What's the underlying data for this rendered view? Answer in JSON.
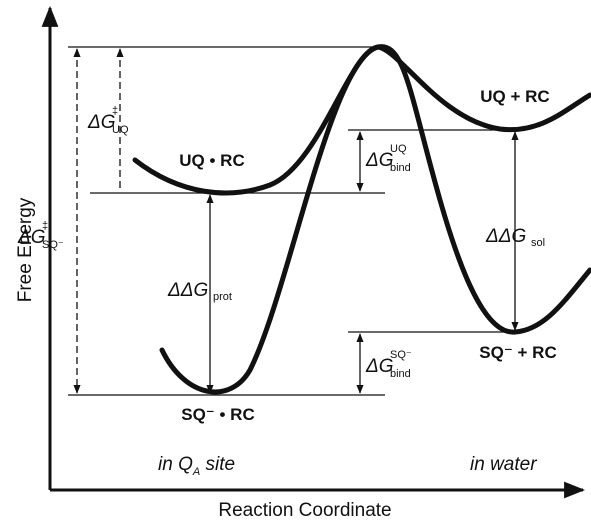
{
  "axes": {
    "y_label": "Free Energy",
    "x_label": "Reaction Coordinate"
  },
  "states": {
    "uq_rc_site": "UQ • RC",
    "sq_rc_site": "SQ⁻ • RC",
    "uq_rc_water": "UQ + RC",
    "sq_rc_water": "SQ⁻ + RC"
  },
  "energies": {
    "barrier_uq": {
      "base": "ΔG",
      "sup": "‡",
      "sub": "UQ"
    },
    "barrier_sq": {
      "base": "ΔG",
      "sup": "‡",
      "sub": "SQ⁻"
    },
    "ddg_prot": {
      "base": "ΔΔG",
      "sub": "prot"
    },
    "ddg_sol": {
      "base": "ΔΔG",
      "sub": "sol"
    },
    "bind_uq": {
      "base": "ΔG",
      "sup": "UQ",
      "sub": "bind"
    },
    "bind_sq": {
      "base": "ΔG",
      "sup": "SQ⁻",
      "sub": "bind"
    }
  },
  "regions": {
    "site": {
      "pre": "in Q",
      "sub": "A",
      "post": " site"
    },
    "water": "in water"
  }
}
